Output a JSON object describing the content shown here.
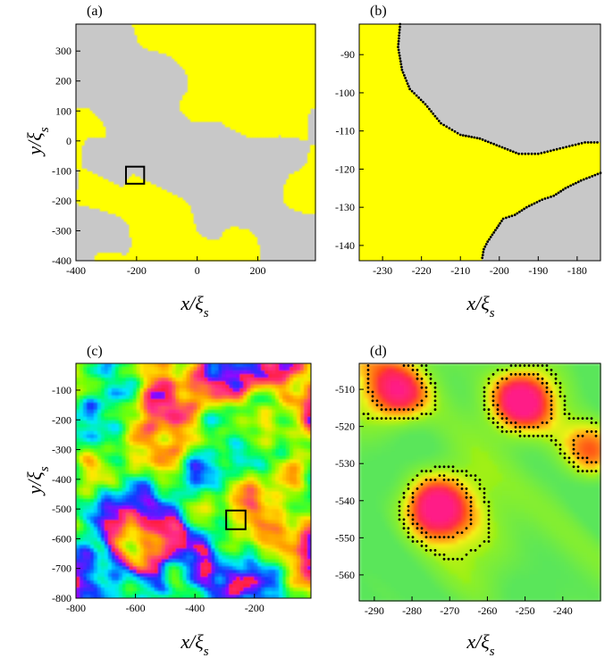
{
  "colors": {
    "yellow": "#ffff00",
    "gray": "#c8c8c8",
    "dots": "#000000",
    "palette": [
      "#ff1e3c",
      "#ff2d8c",
      "#ff9a00",
      "#ffe800",
      "#78ff00",
      "#00ff5a",
      "#00e6ff",
      "#0a3cff",
      "#a000ff"
    ]
  },
  "chart_data": [
    {
      "panel": "a",
      "label": "(a)",
      "type": "heatmap",
      "xlabel": "x/ξ",
      "xlabel_sub": "s",
      "ylabel": "y/ξ",
      "ylabel_sub": "s",
      "xlim": [
        -400,
        390
      ],
      "ylim": [
        -400,
        390
      ],
      "xticks": [
        -400,
        -200,
        0,
        200
      ],
      "yticks": [
        -400,
        -300,
        -200,
        -100,
        0,
        100,
        200,
        300
      ],
      "zoom_box": {
        "x": [
          -235,
          -175
        ],
        "y": [
          -143,
          -86
        ]
      }
    },
    {
      "panel": "b",
      "label": "(b)",
      "type": "heatmap",
      "xlabel": "x/ξ",
      "xlabel_sub": "s",
      "ylabel": "",
      "xlim": [
        -236,
        -174
      ],
      "ylim": [
        -144,
        -82
      ],
      "xticks": [
        -230,
        -220,
        -210,
        -200,
        -190,
        -180
      ],
      "yticks": [
        -140,
        -130,
        -120,
        -110,
        -100,
        -90
      ]
    },
    {
      "panel": "c",
      "label": "(c)",
      "type": "heatmap",
      "xlabel": "x/ξ",
      "xlabel_sub": "s",
      "ylabel": "y/ξ",
      "ylabel_sub": "s",
      "xlim": [
        -800,
        -10
      ],
      "ylim": [
        -800,
        -10
      ],
      "xticks": [
        -800,
        -600,
        -400,
        -200
      ],
      "yticks": [
        -800,
        -700,
        -600,
        -500,
        -400,
        -300,
        -200,
        -100
      ],
      "zoom_box": {
        "x": [
          -295,
          -230
        ],
        "y": [
          -568,
          -505
        ]
      }
    },
    {
      "panel": "d",
      "label": "(d)",
      "type": "heatmap",
      "xlabel": "x/ξ",
      "xlabel_sub": "s",
      "ylabel": "",
      "xlim": [
        -294,
        -230
      ],
      "ylim": [
        -567,
        -503
      ],
      "xticks": [
        -290,
        -280,
        -270,
        -260,
        -250,
        -240
      ],
      "yticks": [
        -560,
        -550,
        -540,
        -530,
        -520,
        -510
      ]
    }
  ]
}
